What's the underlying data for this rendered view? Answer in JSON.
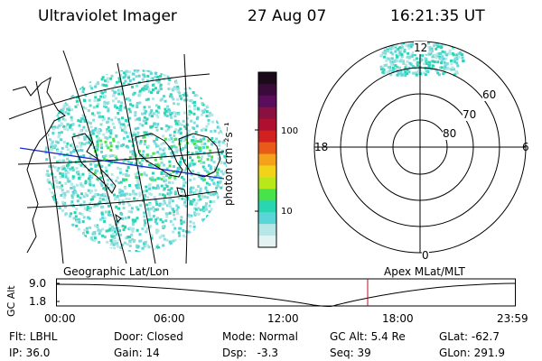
{
  "header": {
    "instrument": "Ultraviolet Imager",
    "date": "27 Aug 07",
    "time": "16:21:35 UT"
  },
  "geo_panel": {
    "label": "Geographic Lat/Lon"
  },
  "colorbar": {
    "unit_label": "photon cm⁻²s⁻¹",
    "ticks": [
      "100",
      "10"
    ],
    "colors": [
      "#1a0a1a",
      "#3a0b3a",
      "#5a0d5a",
      "#8a1040",
      "#b01030",
      "#d22020",
      "#e85a18",
      "#f3a21a",
      "#f3d21a",
      "#b8e81a",
      "#48e24a",
      "#2ad6b2",
      "#5ad6d8",
      "#b6e6e6",
      "#e4f2f2"
    ]
  },
  "polar_panel": {
    "label": "Apex MLat/MLT",
    "mlt_labels": {
      "top": "12",
      "left": "18",
      "right": "6",
      "bottom": "0"
    },
    "lat_labels": [
      "60",
      "70",
      "80"
    ]
  },
  "altitude_plot": {
    "ylabel": "GC Alt",
    "yticks": [
      "9.0",
      "1.8"
    ],
    "xticks": [
      "00:00",
      "06:00",
      "12:00",
      "18:00",
      "23:59"
    ],
    "current_marker_time": "16:21:35"
  },
  "footer": {
    "row1": [
      {
        "key": "Flt:",
        "value": "LBHL"
      },
      {
        "key": "Door:",
        "value": "Closed"
      },
      {
        "key": "Mode:",
        "value": "Normal"
      },
      {
        "key": "GC Alt:",
        "value": "5.4 Re"
      },
      {
        "key": "GLat:",
        "value": "-62.7"
      }
    ],
    "row2": [
      {
        "key": "IP:",
        "value": "36.0"
      },
      {
        "key": "Gain:",
        "value": "14"
      },
      {
        "key": "Dsp:",
        "value": "-3.3"
      },
      {
        "key": "Seq:",
        "value": "39"
      },
      {
        "key": "GLon:",
        "value": "291.9"
      }
    ]
  }
}
